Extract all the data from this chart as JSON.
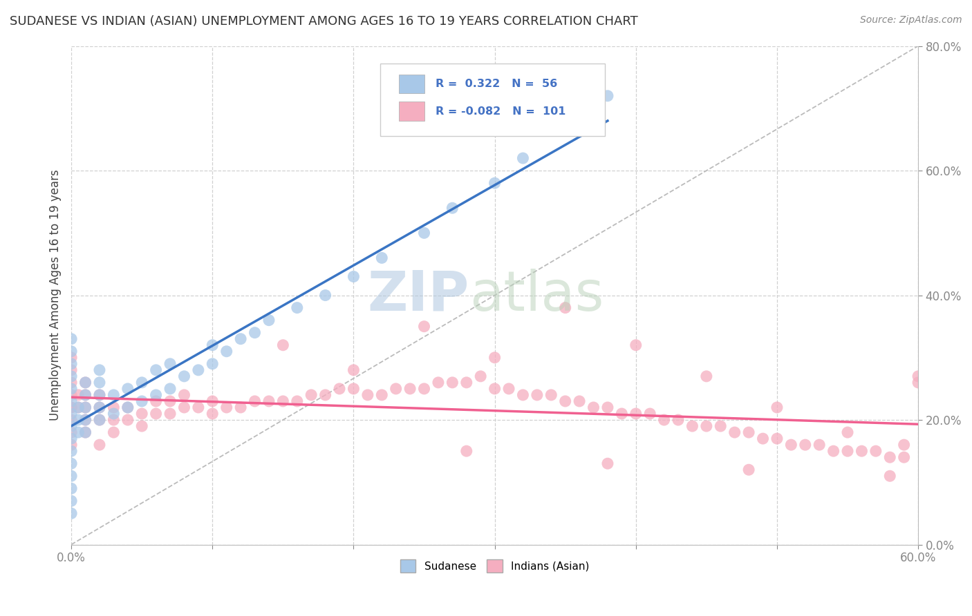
{
  "title": "SUDANESE VS INDIAN (ASIAN) UNEMPLOYMENT AMONG AGES 16 TO 19 YEARS CORRELATION CHART",
  "source": "Source: ZipAtlas.com",
  "ylabel": "Unemployment Among Ages 16 to 19 years",
  "xlim": [
    0.0,
    0.6
  ],
  "ylim": [
    0.0,
    0.8
  ],
  "xticks_shown": [
    0.0,
    0.6
  ],
  "xticklabels_shown": [
    "0.0%",
    "60.0%"
  ],
  "yticks": [
    0.0,
    0.2,
    0.4,
    0.6,
    0.8
  ],
  "yticklabels": [
    "0.0%",
    "20.0%",
    "40.0%",
    "60.0%",
    "80.0%"
  ],
  "grid_xticks": [
    0.0,
    0.1,
    0.2,
    0.3,
    0.4,
    0.5,
    0.6
  ],
  "sudanese_color": "#a8c8e8",
  "indian_color": "#f5aec0",
  "sudanese_line_color": "#3a75c4",
  "indian_line_color": "#f06090",
  "sudanese_R": 0.322,
  "sudanese_N": 56,
  "indian_R": -0.082,
  "indian_N": 101,
  "watermark_zip": "ZIP",
  "watermark_atlas": "atlas",
  "background_color": "#ffffff",
  "grid_color": "#d0d0d0",
  "tick_label_color_y": "#4472c4",
  "tick_label_color_x": "#777777",
  "sudanese_x": [
    0.0,
    0.0,
    0.0,
    0.0,
    0.0,
    0.0,
    0.0,
    0.0,
    0.0,
    0.0,
    0.0,
    0.0,
    0.0,
    0.0,
    0.0,
    0.005,
    0.005,
    0.005,
    0.01,
    0.01,
    0.01,
    0.01,
    0.01,
    0.02,
    0.02,
    0.02,
    0.02,
    0.02,
    0.03,
    0.03,
    0.04,
    0.04,
    0.05,
    0.05,
    0.06,
    0.06,
    0.07,
    0.07,
    0.08,
    0.09,
    0.1,
    0.1,
    0.11,
    0.12,
    0.13,
    0.14,
    0.16,
    0.18,
    0.2,
    0.22,
    0.25,
    0.27,
    0.3,
    0.32,
    0.35,
    0.38
  ],
  "sudanese_y": [
    0.05,
    0.07,
    0.09,
    0.11,
    0.13,
    0.15,
    0.17,
    0.19,
    0.21,
    0.23,
    0.25,
    0.27,
    0.29,
    0.31,
    0.33,
    0.18,
    0.2,
    0.22,
    0.18,
    0.2,
    0.22,
    0.24,
    0.26,
    0.2,
    0.22,
    0.24,
    0.26,
    0.28,
    0.21,
    0.24,
    0.22,
    0.25,
    0.23,
    0.26,
    0.24,
    0.28,
    0.25,
    0.29,
    0.27,
    0.28,
    0.29,
    0.32,
    0.31,
    0.33,
    0.34,
    0.36,
    0.38,
    0.4,
    0.43,
    0.46,
    0.5,
    0.54,
    0.58,
    0.62,
    0.67,
    0.72
  ],
  "indian_x": [
    0.0,
    0.0,
    0.0,
    0.0,
    0.0,
    0.0,
    0.0,
    0.0,
    0.0,
    0.005,
    0.005,
    0.01,
    0.01,
    0.01,
    0.01,
    0.01,
    0.02,
    0.02,
    0.02,
    0.02,
    0.03,
    0.03,
    0.03,
    0.04,
    0.04,
    0.05,
    0.05,
    0.06,
    0.06,
    0.07,
    0.07,
    0.08,
    0.08,
    0.09,
    0.1,
    0.1,
    0.11,
    0.12,
    0.13,
    0.14,
    0.15,
    0.16,
    0.17,
    0.18,
    0.19,
    0.2,
    0.21,
    0.22,
    0.23,
    0.24,
    0.25,
    0.26,
    0.27,
    0.28,
    0.29,
    0.3,
    0.31,
    0.32,
    0.33,
    0.34,
    0.35,
    0.36,
    0.37,
    0.38,
    0.39,
    0.4,
    0.41,
    0.42,
    0.43,
    0.44,
    0.45,
    0.46,
    0.47,
    0.48,
    0.49,
    0.5,
    0.51,
    0.52,
    0.53,
    0.54,
    0.55,
    0.56,
    0.57,
    0.58,
    0.59,
    0.6,
    0.25,
    0.3,
    0.35,
    0.4,
    0.45,
    0.5,
    0.55,
    0.6,
    0.15,
    0.2,
    0.28,
    0.38,
    0.48,
    0.58,
    0.59
  ],
  "indian_y": [
    0.2,
    0.22,
    0.24,
    0.26,
    0.28,
    0.3,
    0.22,
    0.18,
    0.16,
    0.22,
    0.24,
    0.2,
    0.22,
    0.24,
    0.26,
    0.18,
    0.2,
    0.22,
    0.24,
    0.16,
    0.2,
    0.22,
    0.18,
    0.2,
    0.22,
    0.21,
    0.19,
    0.21,
    0.23,
    0.21,
    0.23,
    0.22,
    0.24,
    0.22,
    0.21,
    0.23,
    0.22,
    0.22,
    0.23,
    0.23,
    0.23,
    0.23,
    0.24,
    0.24,
    0.25,
    0.25,
    0.24,
    0.24,
    0.25,
    0.25,
    0.25,
    0.26,
    0.26,
    0.26,
    0.27,
    0.25,
    0.25,
    0.24,
    0.24,
    0.24,
    0.23,
    0.23,
    0.22,
    0.22,
    0.21,
    0.21,
    0.21,
    0.2,
    0.2,
    0.19,
    0.19,
    0.19,
    0.18,
    0.18,
    0.17,
    0.17,
    0.16,
    0.16,
    0.16,
    0.15,
    0.15,
    0.15,
    0.15,
    0.14,
    0.14,
    0.26,
    0.35,
    0.3,
    0.38,
    0.32,
    0.27,
    0.22,
    0.18,
    0.27,
    0.32,
    0.28,
    0.15,
    0.13,
    0.12,
    0.11,
    0.16
  ]
}
